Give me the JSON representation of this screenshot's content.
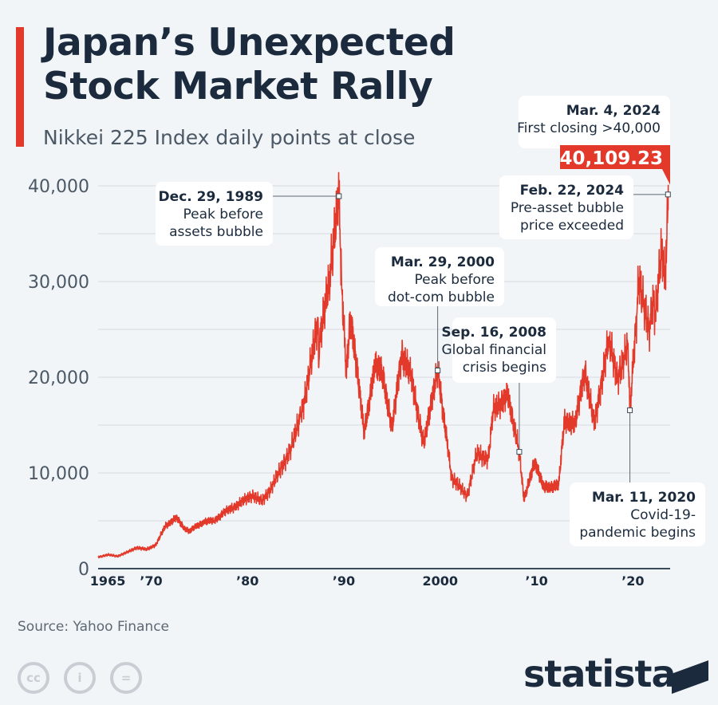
{
  "header": {
    "title_line1": "Japan’s Unexpected",
    "title_line2": "Stock Market Rally",
    "subtitle": "Nikkei 225 Index daily points at close"
  },
  "footer": {
    "source": "Source: Yahoo Finance",
    "logo": "statista",
    "license_icons": [
      "cc-icon",
      "attribution-icon",
      "no-derivatives-icon"
    ],
    "license_labels": [
      "cc",
      "i",
      "="
    ]
  },
  "colors": {
    "accent": "#e2392a",
    "line": "#e2392a",
    "text": "#1b2b3d",
    "grid": "#d5dbe1",
    "background": "#f2f5f8"
  },
  "chart_data": {
    "type": "line",
    "title": "Japan’s Unexpected Stock Market Rally",
    "ylim": [
      0,
      40000
    ],
    "xlim": [
      1965,
      2024.2
    ],
    "grid": true,
    "y_ticks": [
      0,
      10000,
      20000,
      30000,
      40000
    ],
    "y_tick_labels": [
      "0",
      "10,000",
      "20,000",
      "30,000",
      "40,000"
    ],
    "x_ticks": [
      1966,
      1970.5,
      1980.5,
      1990.5,
      2000.5,
      2010.5,
      2020.5
    ],
    "x_tick_labels": [
      "1965",
      "’70",
      "’80",
      "’90",
      "2000",
      "’10",
      "’20"
    ],
    "series": [
      {
        "x": [
          1965,
          1966,
          1967,
          1968,
          1969,
          1970,
          1971,
          1972,
          1973.1,
          1973.9,
          1974.5,
          1975,
          1976,
          1977,
          1978,
          1979,
          1980,
          1981,
          1982,
          1983,
          1984,
          1985,
          1986,
          1986.6,
          1987.8,
          1987.9,
          1988,
          1989,
          1989.99,
          1990.3,
          1990.75,
          1991.2,
          1992.6,
          1993.7,
          1994.5,
          1995.5,
          1996.5,
          1997.5,
          1998.8,
          2000.24,
          2001.7,
          2003.3,
          2004.3,
          2005.5,
          2006,
          2007.5,
          2008.71,
          2009.2,
          2010.3,
          2011.2,
          2012.8,
          2013.4,
          2014.5,
          2015.5,
          2016.5,
          2018,
          2018.9,
          2019.5,
          2020.0,
          2020.19,
          2020.9,
          2021.1,
          2021.5,
          2022.2,
          2022.6,
          2022.8,
          2023.5,
          2023.8,
          2024.0,
          2024.14,
          2024.17
        ],
        "values": [
          1200,
          1450,
          1300,
          1700,
          2200,
          2000,
          2500,
          4500,
          5300,
          4300,
          3900,
          4300,
          4900,
          5000,
          5800,
          6400,
          7000,
          7700,
          7000,
          8500,
          10500,
          12500,
          16000,
          18500,
          26000,
          21000,
          24000,
          30000,
          38916,
          29000,
          20500,
          26500,
          14300,
          21000,
          20700,
          14500,
          22500,
          20000,
          13000,
          20706,
          9500,
          7600,
          12000,
          11500,
          16500,
          18200,
          12200,
          7100,
          11300,
          8500,
          8700,
          15600,
          15000,
          20800,
          15000,
          24000,
          20000,
          21500,
          23500,
          16550,
          26500,
          30400,
          28000,
          25000,
          28500,
          26000,
          33500,
          30500,
          33500,
          39098,
          40109.23
        ]
      }
    ],
    "annotations": [
      {
        "date": "Dec. 29, 1989",
        "text_line1": "Peak before",
        "text_line2": "assets bubble",
        "x": 1989.99,
        "y": 38916
      },
      {
        "date": "Mar. 29, 2000",
        "text_line1": "Peak before",
        "text_line2": "dot-com bubble",
        "x": 2000.24,
        "y": 20706
      },
      {
        "date": "Sep. 16, 2008",
        "text_line1": "Global financial",
        "text_line2": "crisis begins",
        "x": 2008.71,
        "y": 12200
      },
      {
        "date": "Mar. 11, 2020",
        "text_line1": "Covid-19-",
        "text_line2": "pandemic begins",
        "x": 2020.19,
        "y": 16550
      },
      {
        "date": "Feb. 22, 2024",
        "text_line1": "Pre-asset bubble",
        "text_line2": "price exceeded",
        "x": 2024.14,
        "y": 39098
      },
      {
        "date": "Mar. 4, 2024",
        "text_line1": "First closing >40,000",
        "value_label": "40,109.23",
        "x": 2024.17,
        "y": 40109.23
      }
    ]
  }
}
